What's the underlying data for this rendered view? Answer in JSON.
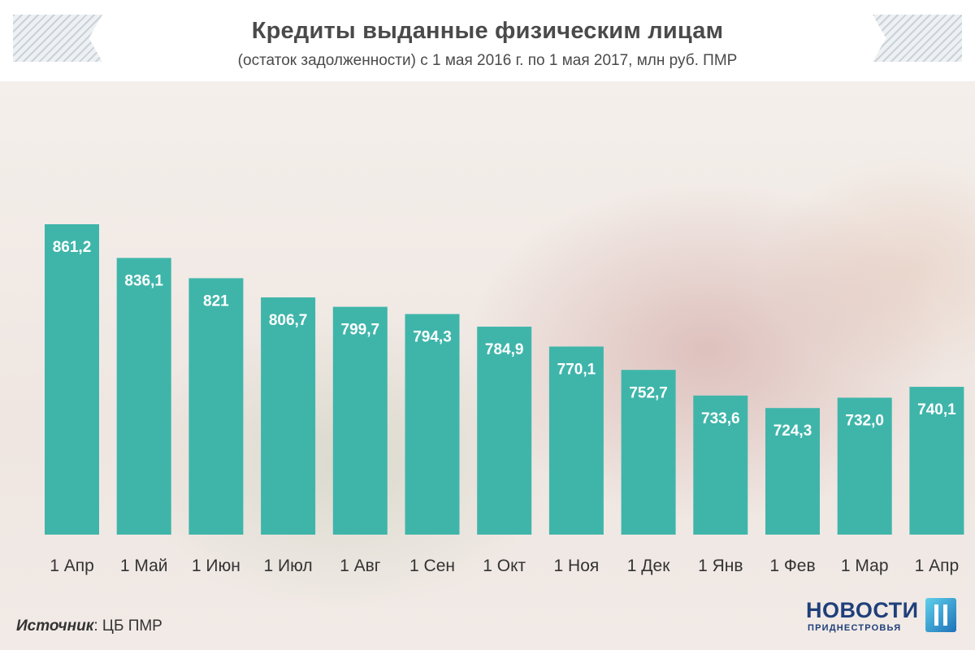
{
  "header": {
    "title": "Кредиты выданные физическим лицам",
    "subtitle": "(остаток задолженности) с 1 мая 2016 г. по 1 мая 2017, млн руб. ПМР"
  },
  "chart_data": {
    "type": "bar",
    "title": "Кредиты выданные физическим лицам",
    "subtitle": "(остаток задолженности) с 1 мая 2016 г. по 1 мая 2017, млн руб. ПМР",
    "categories": [
      "1 Апр",
      "1 Май",
      "1 Июн",
      "1 Июл",
      "1 Авг",
      "1 Сен",
      "1 Окт",
      "1 Ноя",
      "1 Дек",
      "1 Янв",
      "1 Фев",
      "1 Мар",
      "1 Апр"
    ],
    "values": [
      861.2,
      836.1,
      821,
      806.7,
      799.7,
      794.3,
      784.9,
      770.1,
      752.7,
      733.6,
      724.3,
      732.0,
      740.1
    ],
    "value_labels": [
      "861,2",
      "836,1",
      "821",
      "806,7",
      "799,7",
      "794,3",
      "784,9",
      "770,1",
      "752,7",
      "733,6",
      "724,3",
      "732,0",
      "740,1"
    ],
    "bar_color": "#3fb5aa",
    "grid": false,
    "legend": "none"
  },
  "footer": {
    "source_label": "Источник",
    "source_value": ": ЦБ ПМР",
    "logo_word": "НОВОСТИ",
    "logo_sub": "ПРИДНЕСТРОВЬЯ"
  },
  "colors": {
    "accent": "#3fb5aa",
    "title_text": "#4a4a4a",
    "logo": "#1f3f7a"
  }
}
